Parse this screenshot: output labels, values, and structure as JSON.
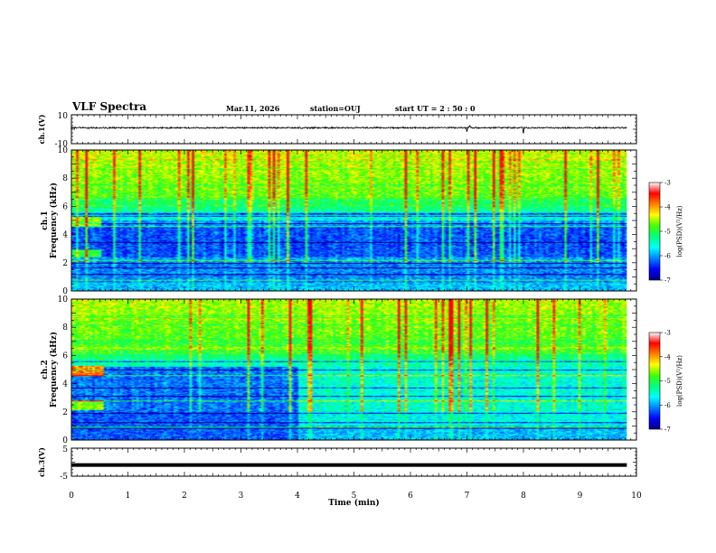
{
  "header": {
    "title": "VLF Spectra",
    "date": "Mar.11, 2026",
    "station": "station=OUJ",
    "start": "start  UT =   2 : 50 : 0"
  },
  "chart_data": {
    "type": "heatmap",
    "title": "VLF Spectra",
    "x": {
      "label": "Time  (min)",
      "range": [
        0,
        10
      ],
      "ticks": [
        0,
        1,
        2,
        3,
        4,
        5,
        6,
        7,
        8,
        9,
        10
      ],
      "data_end": 9.83
    },
    "panels": [
      {
        "name": "ch1-waveform",
        "type": "line",
        "ylabel": "ch.1(V)",
        "ylim": [
          -10,
          10
        ],
        "ytick_labels": [
          "10",
          "-10"
        ],
        "baseline": 1.0,
        "amplitude": 0.5,
        "spikes": [
          {
            "t": 7.0,
            "v": -1.5
          },
          {
            "t": 7.05,
            "v": 2.5
          },
          {
            "t": 8.0,
            "v": -2.5
          }
        ]
      },
      {
        "name": "ch1-spectrogram",
        "type": "heatmap",
        "ylabel": "ch.1\nFrequency  (kHz)",
        "ylim": [
          0,
          10
        ],
        "yticks": [
          "0",
          "2",
          "4",
          "6",
          "8",
          "10"
        ],
        "colorbar": {
          "label": "log(PSD)(V²/Hz)",
          "range": [
            -7,
            -3
          ],
          "ticks": [
            "-3",
            "-4",
            "-5",
            "-6",
            "-7"
          ]
        }
      },
      {
        "name": "ch2-spectrogram",
        "type": "heatmap",
        "ylabel": "ch.2\nFrequency  (kHz)",
        "ylim": [
          0,
          10
        ],
        "yticks": [
          "0",
          "2",
          "4",
          "6",
          "8",
          "10"
        ],
        "regime_change_min": 4.0,
        "colorbar": {
          "label": "log(PSD)(V²/Hz)",
          "range": [
            -7,
            -3
          ],
          "ticks": [
            "-3",
            "-4",
            "-5",
            "-6",
            "-7"
          ]
        }
      },
      {
        "name": "ch3-waveform",
        "type": "line",
        "ylabel": "ch.3(V)",
        "ylim": [
          -5,
          5
        ],
        "ytick_labels": [
          "5",
          "-5"
        ],
        "baseline": -1.0
      }
    ]
  },
  "colors": {
    "colormap": [
      "#000080",
      "#0000ff",
      "#0080ff",
      "#00ffff",
      "#00ff80",
      "#40ff00",
      "#ffff00",
      "#ff8000",
      "#ff0000",
      "#ffffff"
    ]
  }
}
